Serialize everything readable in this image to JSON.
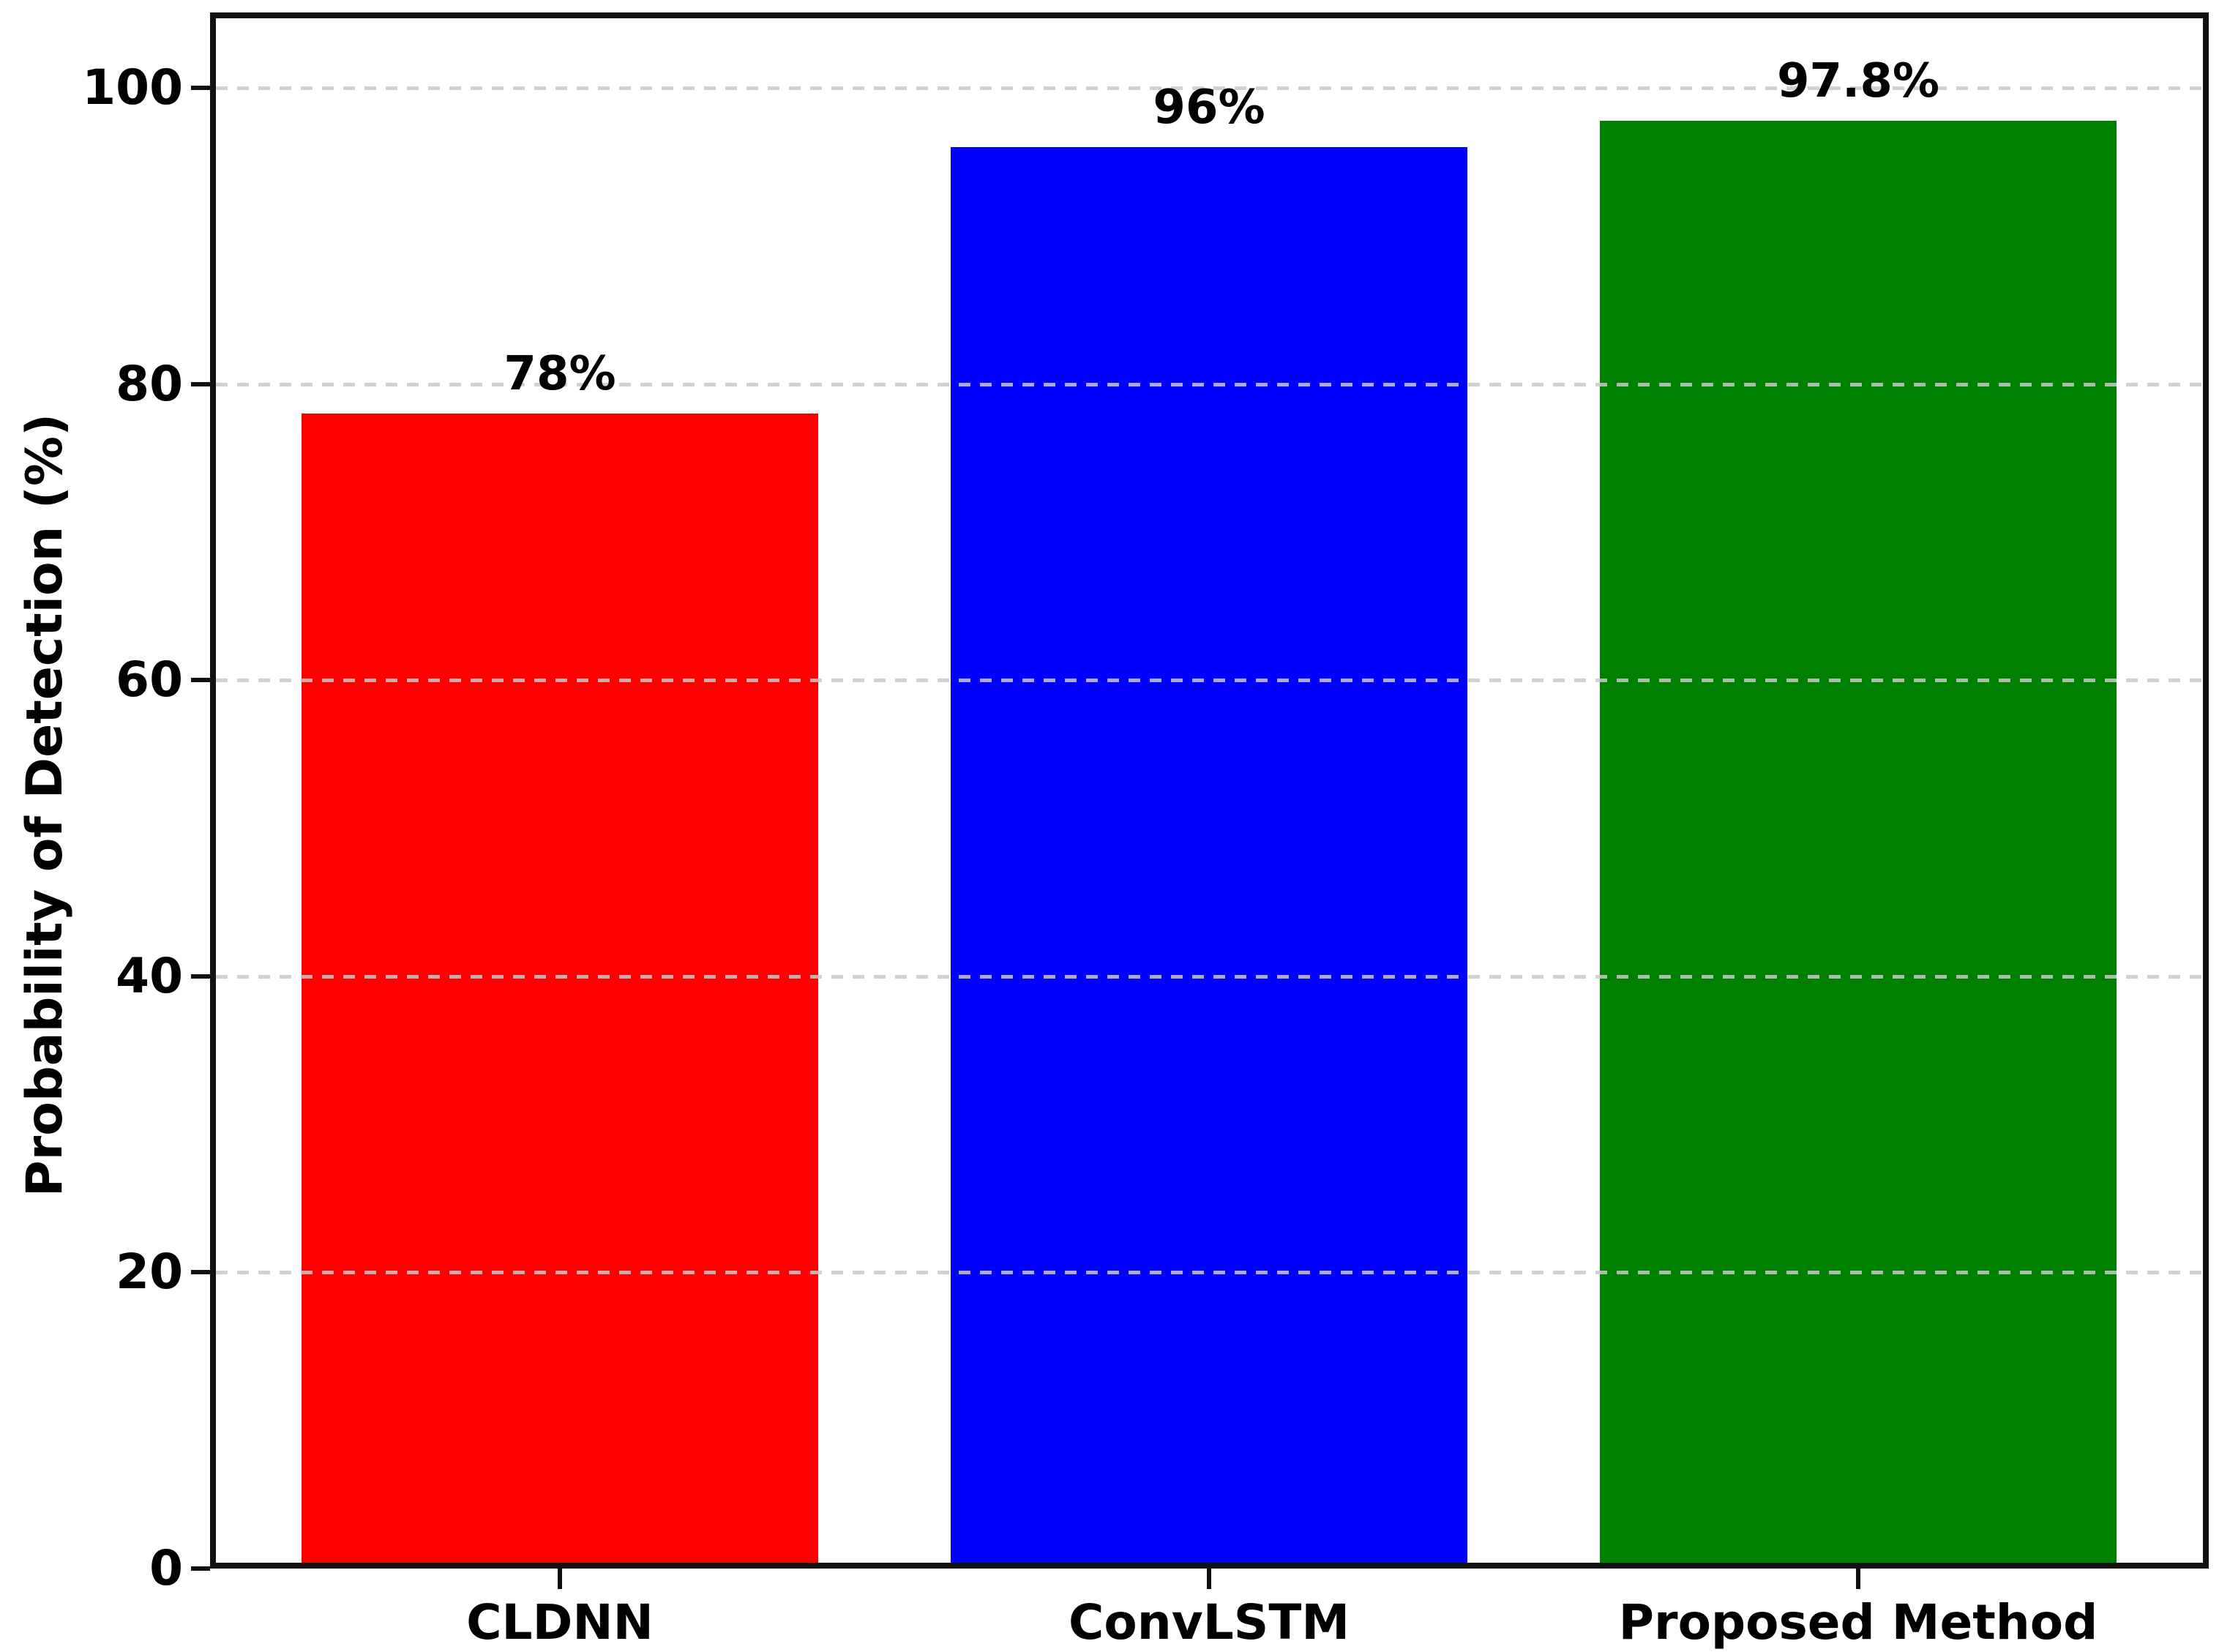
{
  "figure": {
    "background": "#ffffff",
    "axis_color": "#111111",
    "text_color": "#000000"
  },
  "chart_data": {
    "type": "bar",
    "categories": [
      "CLDNN",
      "ConvLSTM",
      "Proposed Method"
    ],
    "values": [
      78,
      96,
      97.8
    ],
    "bar_value_labels": [
      "78%",
      "96%",
      "97.8%"
    ],
    "bar_colors": [
      "#ff0000",
      "#0000ff",
      "#008000"
    ],
    "ylabel": "Probability of Detection (%)",
    "ylim": [
      0,
      105
    ],
    "yticks": [
      0,
      20,
      40,
      60,
      80,
      100
    ],
    "ytick_labels": [
      "0",
      "20",
      "40",
      "60",
      "80",
      "100"
    ],
    "grid": {
      "axis": "y",
      "style": "dashed",
      "color": "#c9c9c9"
    },
    "legend": null
  }
}
